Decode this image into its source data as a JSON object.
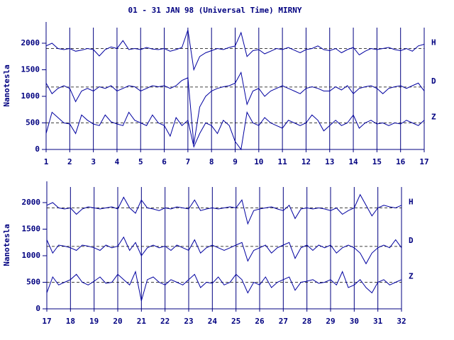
{
  "chart_data": [
    {
      "type": "line",
      "title": "01 - 31 JAN 98 (Universal Time) MIRNY",
      "ylabel": "Nanotesla",
      "color": "#0000a0",
      "x": [
        1,
        1.25,
        1.5,
        1.75,
        2,
        2.25,
        2.5,
        2.75,
        3,
        3.25,
        3.5,
        3.75,
        4,
        4.25,
        4.5,
        4.75,
        5,
        5.25,
        5.5,
        5.75,
        6,
        6.25,
        6.5,
        6.75,
        7,
        7.25,
        7.5,
        7.75,
        8,
        8.25,
        8.5,
        8.75,
        9,
        9.25,
        9.5,
        9.75,
        10,
        10.25,
        10.5,
        10.75,
        11,
        11.25,
        11.5,
        11.75,
        12,
        12.25,
        12.5,
        12.75,
        13,
        13.25,
        13.5,
        13.75,
        14,
        14.25,
        14.5,
        14.75,
        15,
        15.25,
        15.5,
        15.75,
        16,
        16.25,
        16.5,
        16.75,
        17
      ],
      "series": [
        {
          "name": "H",
          "baseline": 1900,
          "values": [
            1950,
            2000,
            1900,
            1880,
            1900,
            1850,
            1870,
            1900,
            1880,
            1760,
            1880,
            1930,
            1900,
            2050,
            1880,
            1900,
            1880,
            1920,
            1890,
            1880,
            1900,
            1850,
            1880,
            1920,
            2250,
            1500,
            1750,
            1820,
            1860,
            1900,
            1880,
            1920,
            1950,
            2200,
            1750,
            1860,
            1880,
            1800,
            1850,
            1900,
            1880,
            1920,
            1870,
            1820,
            1880,
            1900,
            1950,
            1880,
            1860,
            1900,
            1820,
            1880,
            1920,
            1780,
            1850,
            1900,
            1880,
            1900,
            1920,
            1880,
            1860,
            1900,
            1850,
            1950,
            1980
          ]
        },
        {
          "name": "D",
          "baseline": 1175,
          "values": [
            1250,
            1050,
            1150,
            1200,
            1150,
            900,
            1100,
            1150,
            1100,
            1180,
            1150,
            1200,
            1100,
            1150,
            1200,
            1180,
            1100,
            1150,
            1200,
            1180,
            1200,
            1150,
            1200,
            1300,
            1350,
            100,
            800,
            1000,
            1100,
            1150,
            1180,
            1200,
            1250,
            1450,
            850,
            1100,
            1150,
            1000,
            1100,
            1150,
            1200,
            1150,
            1100,
            1050,
            1150,
            1180,
            1150,
            1100,
            1100,
            1180,
            1120,
            1200,
            1050,
            1150,
            1180,
            1200,
            1150,
            1050,
            1150,
            1180,
            1200,
            1150,
            1200,
            1250,
            1100
          ]
        },
        {
          "name": "Z",
          "baseline": 500,
          "values": [
            300,
            700,
            600,
            500,
            480,
            300,
            650,
            550,
            480,
            450,
            650,
            520,
            480,
            450,
            700,
            550,
            500,
            450,
            650,
            500,
            450,
            250,
            600,
            450,
            550,
            50,
            300,
            500,
            450,
            300,
            550,
            450,
            150,
            0,
            700,
            500,
            450,
            600,
            500,
            450,
            400,
            550,
            500,
            450,
            500,
            650,
            550,
            350,
            450,
            550,
            450,
            500,
            650,
            400,
            500,
            550,
            480,
            500,
            450,
            500,
            480,
            550,
            500,
            450,
            550
          ]
        }
      ],
      "xlim": [
        1,
        17
      ],
      "xticks": [
        1,
        2,
        3,
        4,
        5,
        6,
        7,
        8,
        9,
        10,
        11,
        12,
        13,
        14,
        15,
        16,
        17
      ],
      "ylim": [
        0,
        2400
      ],
      "yticks": [
        0,
        500,
        1000,
        1500,
        2000
      ]
    },
    {
      "type": "line",
      "ylabel": "Nanotesla",
      "color": "#0000a0",
      "x": [
        17,
        17.25,
        17.5,
        17.75,
        18,
        18.25,
        18.5,
        18.75,
        19,
        19.25,
        19.5,
        19.75,
        20,
        20.25,
        20.5,
        20.75,
        21,
        21.25,
        21.5,
        21.75,
        22,
        22.25,
        22.5,
        22.75,
        23,
        23.25,
        23.5,
        23.75,
        24,
        24.25,
        24.5,
        24.75,
        25,
        25.25,
        25.5,
        25.75,
        26,
        26.25,
        26.5,
        26.75,
        27,
        27.25,
        27.5,
        27.75,
        28,
        28.25,
        28.5,
        28.75,
        29,
        29.25,
        29.5,
        29.75,
        30,
        30.25,
        30.5,
        30.75,
        31,
        31.25,
        31.5,
        31.75,
        32
      ],
      "series": [
        {
          "name": "H",
          "baseline": 1900,
          "values": [
            1950,
            2000,
            1900,
            1880,
            1900,
            1780,
            1880,
            1920,
            1900,
            1880,
            1900,
            1920,
            1880,
            2100,
            1900,
            1800,
            2050,
            1900,
            1880,
            1850,
            1900,
            1880,
            1920,
            1900,
            1880,
            2050,
            1850,
            1880,
            1900,
            1880,
            1900,
            1920,
            1900,
            2050,
            1600,
            1850,
            1880,
            1900,
            1920,
            1880,
            1850,
            1950,
            1700,
            1880,
            1900,
            1880,
            1900,
            1880,
            1850,
            1900,
            1780,
            1850,
            1900,
            2150,
            1950,
            1750,
            1900,
            1950,
            1920,
            1900,
            1950
          ]
        },
        {
          "name": "D",
          "baseline": 1175,
          "values": [
            1300,
            1050,
            1200,
            1180,
            1150,
            1100,
            1200,
            1180,
            1150,
            1100,
            1200,
            1150,
            1180,
            1350,
            1100,
            1250,
            1000,
            1150,
            1200,
            1150,
            1180,
            1100,
            1200,
            1150,
            1100,
            1300,
            1050,
            1150,
            1200,
            1150,
            1100,
            1150,
            1200,
            1250,
            900,
            1100,
            1150,
            1200,
            1050,
            1150,
            1200,
            1250,
            950,
            1150,
            1200,
            1100,
            1200,
            1150,
            1200,
            1050,
            1150,
            1200,
            1150,
            1050,
            850,
            1050,
            1150,
            1200,
            1150,
            1300,
            1150
          ]
        },
        {
          "name": "Z",
          "baseline": 500,
          "values": [
            300,
            600,
            450,
            500,
            550,
            650,
            500,
            450,
            520,
            600,
            480,
            500,
            650,
            550,
            450,
            700,
            150,
            550,
            600,
            500,
            450,
            550,
            500,
            450,
            550,
            650,
            400,
            500,
            480,
            600,
            450,
            500,
            650,
            550,
            300,
            500,
            450,
            600,
            400,
            500,
            550,
            600,
            350,
            500,
            520,
            550,
            480,
            500,
            550,
            450,
            700,
            400,
            450,
            550,
            400,
            300,
            500,
            550,
            450,
            500,
            550
          ]
        }
      ],
      "xlim": [
        17,
        32
      ],
      "xticks": [
        17,
        18,
        19,
        20,
        21,
        22,
        23,
        24,
        25,
        26,
        27,
        28,
        29,
        30,
        31,
        32
      ],
      "ylim": [
        0,
        2400
      ],
      "yticks": [
        0,
        500,
        1000,
        1500,
        2000
      ]
    }
  ]
}
